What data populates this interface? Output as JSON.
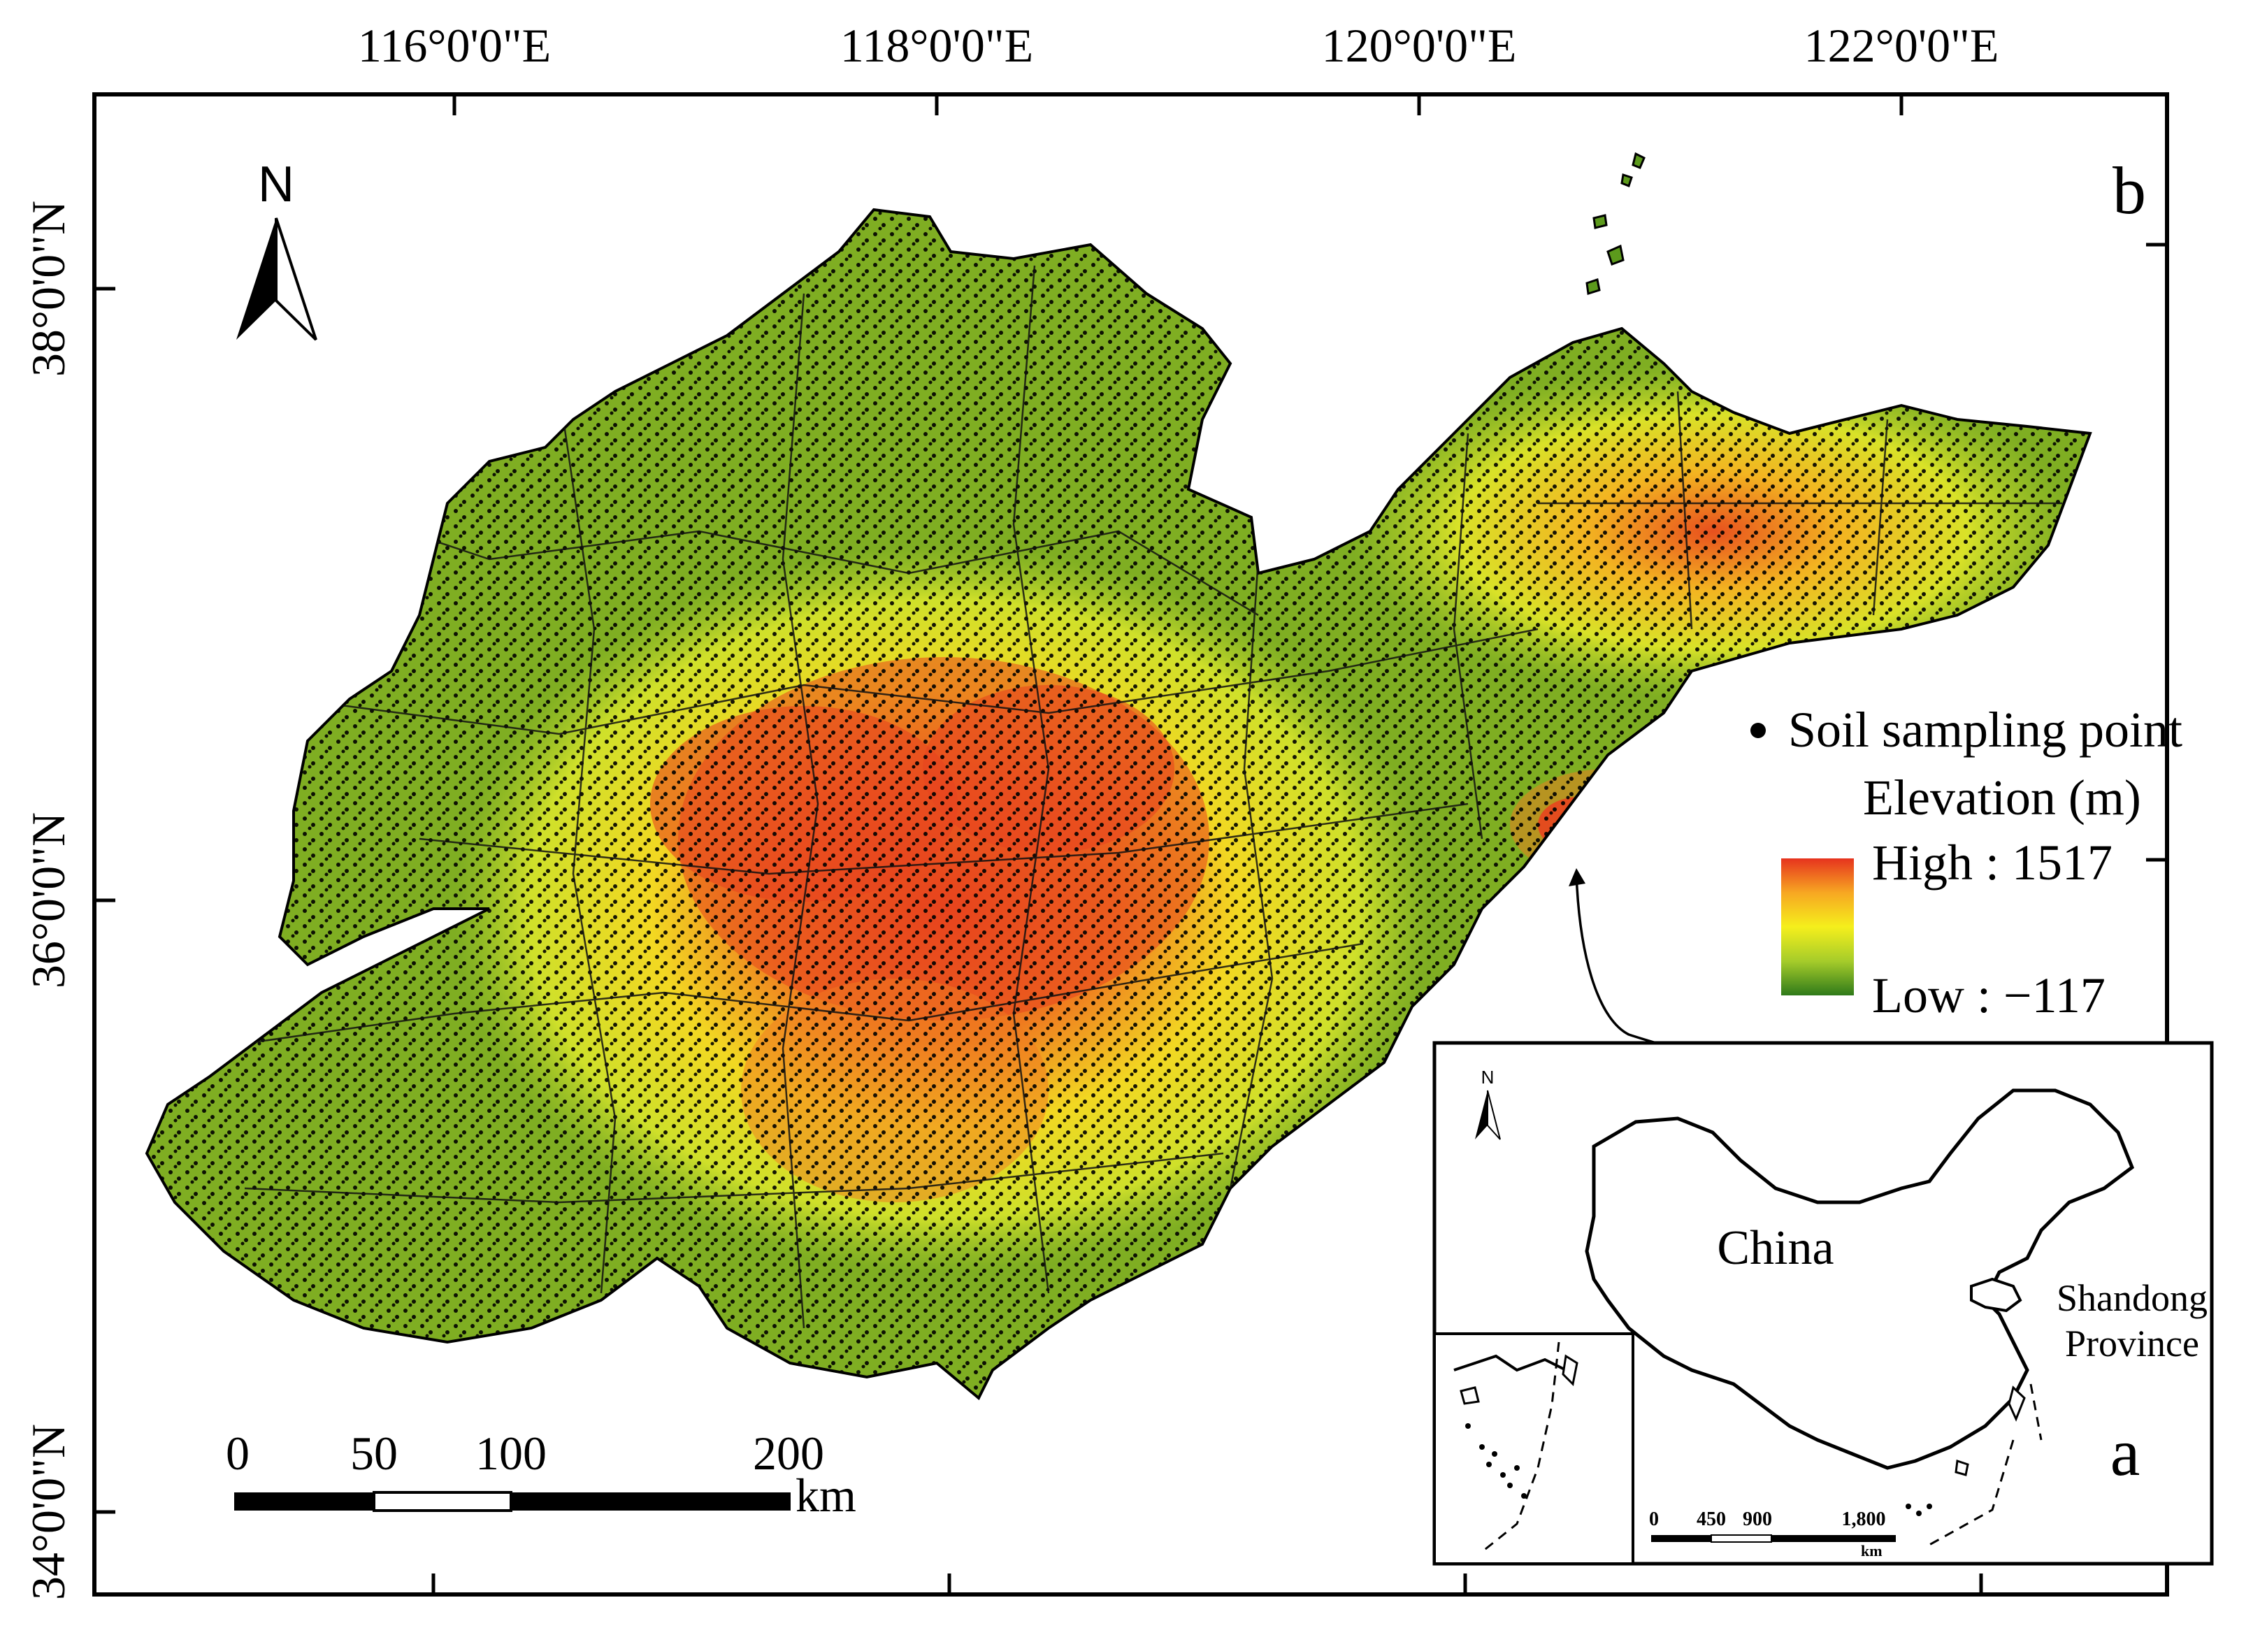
{
  "map": {
    "panel_label": "b",
    "north_label": "N",
    "top_coords": [
      "116°0'0\"E",
      "118°0'0\"E",
      "120°0'0\"E",
      "122°0'0\"E"
    ],
    "left_coords": [
      "38°0'0\"N",
      "36°0'0\"N",
      "34°0'0\"N"
    ],
    "scalebar": {
      "ticks": [
        "0",
        "50",
        "100",
        "200"
      ],
      "unit": "km"
    },
    "legend": {
      "point_label": "Soil sampling point",
      "elevation_title": "Elevation (m)",
      "high_label": "High : 1517",
      "low_label": "Low : −117",
      "gradient_colors": [
        "#e6331e",
        "#f7a722",
        "#f5ef1c",
        "#a6cc2a",
        "#2f7a1a"
      ]
    },
    "region_colors": {
      "lowland": "#7fae22",
      "midland": "#cfe02a",
      "upland": "#f2d822",
      "highland": "#e8441e",
      "coast": "#5c9a1c"
    }
  },
  "inset": {
    "panel_label": "a",
    "north_label": "N",
    "country_label": "China",
    "province_label_line1": "Shandong",
    "province_label_line2": "Province",
    "scalebar": {
      "ticks": [
        "0",
        "450",
        "900",
        "1,800"
      ],
      "unit": "km"
    }
  }
}
